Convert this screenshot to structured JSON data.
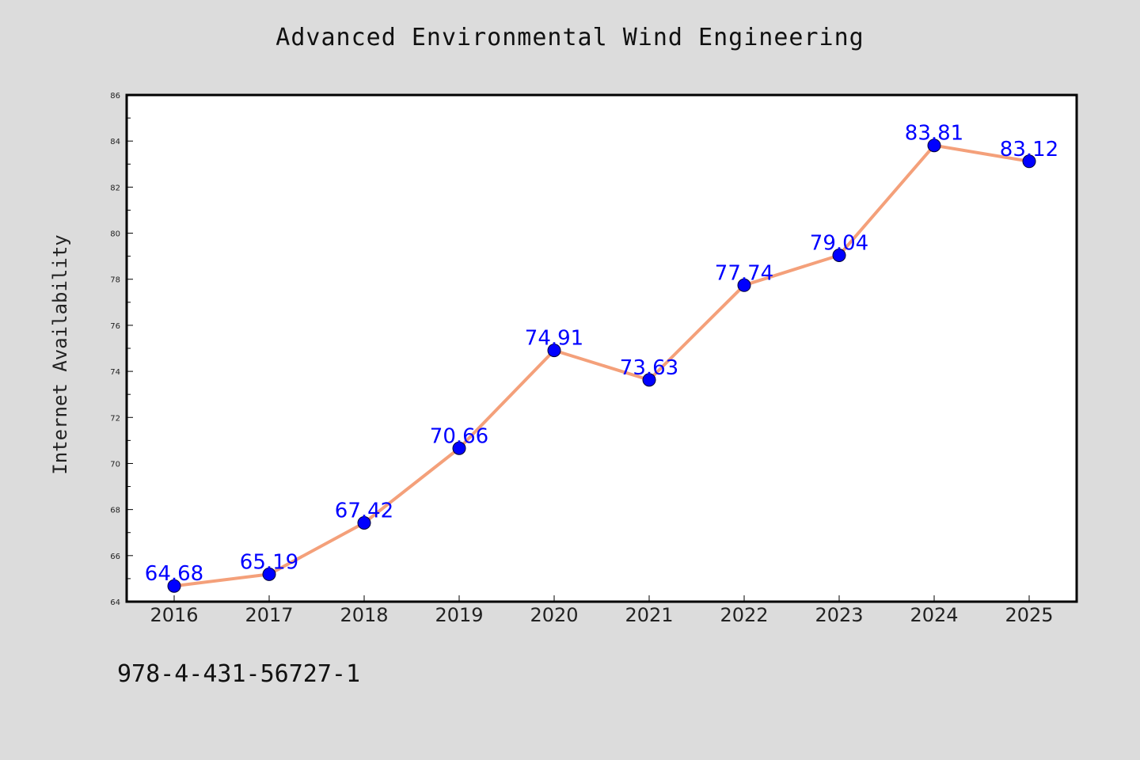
{
  "chart_data": {
    "type": "line",
    "title": "Advanced Environmental Wind Engineering",
    "xlabel": "",
    "ylabel": "Internet Availability",
    "categories": [
      "2016",
      "2017",
      "2018",
      "2019",
      "2020",
      "2021",
      "2022",
      "2023",
      "2024",
      "2025"
    ],
    "series": [
      {
        "values": [
          64.68,
          65.19,
          67.42,
          70.66,
          74.91,
          73.63,
          77.74,
          79.04,
          83.81,
          83.12
        ]
      }
    ],
    "data_labels": [
      "64.68",
      "65.19",
      "67.42",
      "70.66",
      "74.91",
      "73.63",
      "77.74",
      "79.04",
      "83.81",
      "83.12"
    ],
    "ylim": [
      64,
      86
    ],
    "yticks": [
      "64",
      "66",
      "68",
      "70",
      "72",
      "74",
      "76",
      "78",
      "80",
      "82",
      "84",
      "86"
    ],
    "grid": false,
    "line_color": "#f4a07a",
    "marker_color": "#0000ff",
    "label_color": "#0000ff"
  },
  "footer": {
    "isbn": "978-4-431-56727-1"
  }
}
